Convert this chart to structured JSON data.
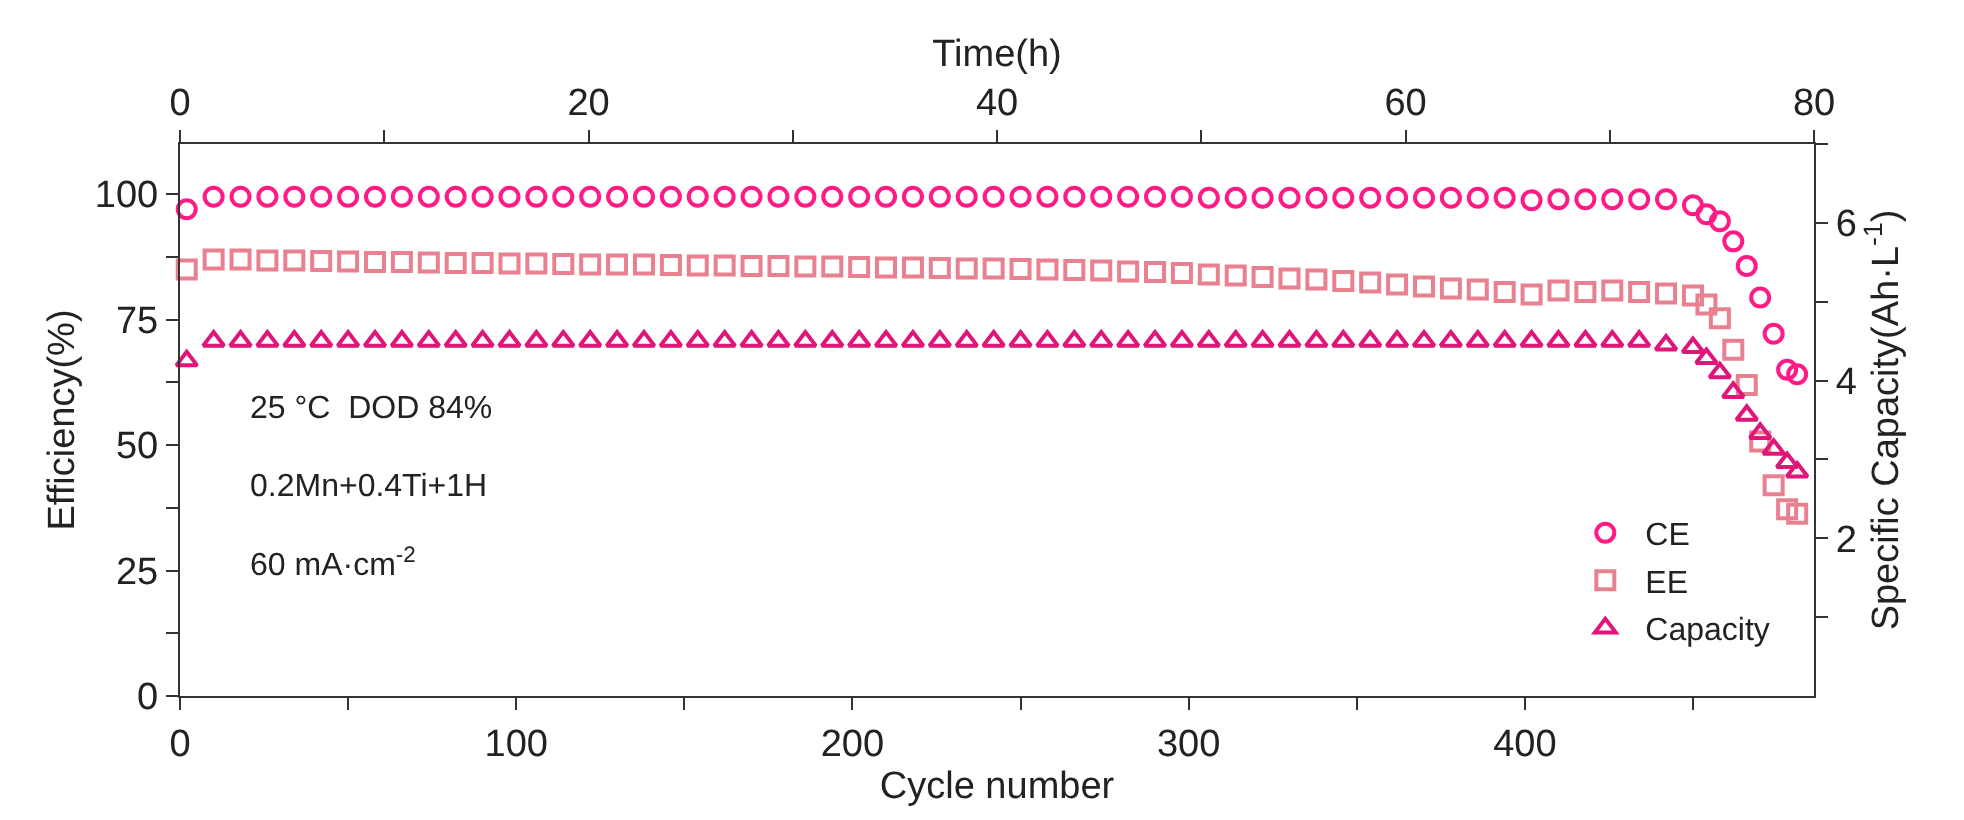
{
  "chart_data": {
    "type": "scatter",
    "xlabel": "Cycle number",
    "ylabel": "Efficiency(%)",
    "y2label": "Specific Capacity(Ah·L$^{-1}$)",
    "x2label": "Time(h)",
    "x": [
      2,
      10,
      18,
      26,
      34,
      42,
      50,
      58,
      66,
      74,
      82,
      90,
      98,
      106,
      114,
      122,
      130,
      138,
      146,
      154,
      162,
      170,
      178,
      186,
      194,
      202,
      210,
      218,
      226,
      234,
      242,
      250,
      258,
      266,
      274,
      282,
      290,
      298,
      306,
      314,
      322,
      330,
      338,
      346,
      354,
      362,
      370,
      378,
      386,
      394,
      402,
      410,
      418,
      426,
      434,
      442,
      450,
      454,
      458,
      462,
      466,
      470,
      474,
      478,
      481
    ],
    "series": [
      {
        "name": "CE",
        "color": "#ff1a85",
        "marker": "circle",
        "values": [
          97,
          99.5,
          99.5,
          99.5,
          99.5,
          99.5,
          99.5,
          99.5,
          99.5,
          99.5,
          99.5,
          99.5,
          99.5,
          99.5,
          99.5,
          99.5,
          99.5,
          99.5,
          99.5,
          99.5,
          99.5,
          99.5,
          99.5,
          99.5,
          99.5,
          99.5,
          99.5,
          99.5,
          99.5,
          99.5,
          99.5,
          99.5,
          99.5,
          99.5,
          99.5,
          99.5,
          99.5,
          99.5,
          99.3,
          99.3,
          99.3,
          99.3,
          99.3,
          99.3,
          99.3,
          99.3,
          99.3,
          99.3,
          99.3,
          99.3,
          98.8,
          99,
          99,
          99,
          99,
          99,
          97.8,
          96,
          94.6,
          90.6,
          85.7,
          79.4,
          72.2,
          65,
          64.1
        ]
      },
      {
        "name": "EE",
        "color": "#e8808f",
        "marker": "square",
        "values": [
          85,
          87,
          87,
          86.8,
          86.8,
          86.7,
          86.6,
          86.5,
          86.5,
          86.4,
          86.3,
          86.3,
          86.2,
          86.2,
          86.1,
          86,
          86,
          86,
          85.9,
          85.8,
          85.8,
          85.7,
          85.7,
          85.6,
          85.6,
          85.5,
          85.4,
          85.4,
          85.3,
          85.2,
          85.2,
          85.1,
          85,
          84.9,
          84.8,
          84.6,
          84.5,
          84.3,
          84,
          83.8,
          83.5,
          83.2,
          83,
          82.7,
          82.4,
          82,
          81.6,
          81.2,
          81,
          80.5,
          80,
          80.8,
          80.5,
          80.8,
          80.5,
          80.2,
          79.8,
          78,
          75.3,
          69,
          62,
          50.7,
          42,
          37.2,
          36.3
        ]
      },
      {
        "name": "Capacity",
        "color": "#e0157a",
        "marker": "triangle",
        "axis": "y2",
        "values": [
          4.25,
          4.5,
          4.5,
          4.5,
          4.5,
          4.5,
          4.5,
          4.5,
          4.5,
          4.5,
          4.5,
          4.5,
          4.5,
          4.5,
          4.5,
          4.5,
          4.5,
          4.5,
          4.5,
          4.5,
          4.5,
          4.5,
          4.5,
          4.5,
          4.5,
          4.5,
          4.5,
          4.5,
          4.5,
          4.5,
          4.5,
          4.5,
          4.5,
          4.5,
          4.5,
          4.5,
          4.5,
          4.5,
          4.5,
          4.5,
          4.5,
          4.5,
          4.5,
          4.5,
          4.5,
          4.5,
          4.5,
          4.5,
          4.5,
          4.5,
          4.5,
          4.5,
          4.5,
          4.5,
          4.5,
          4.45,
          4.42,
          4.28,
          4.1,
          3.85,
          3.56,
          3.33,
          3.13,
          2.96,
          2.84
        ]
      }
    ],
    "xlim": [
      0,
      486
    ],
    "xticks": [
      0,
      {
        "value": 50,
        "label": null
      },
      100,
      {
        "value": 150,
        "label": null
      },
      200,
      {
        "value": 250,
        "label": null
      },
      300,
      {
        "value": 350,
        "label": null
      },
      400,
      {
        "value": 450,
        "label": null
      }
    ],
    "x2lim": [
      0,
      80
    ],
    "x2ticks": [
      0,
      {
        "value": 10,
        "label": null
      },
      20,
      {
        "value": 30,
        "label": null
      },
      40,
      {
        "value": 50,
        "label": null
      },
      60,
      {
        "value": 70,
        "label": null
      },
      80
    ],
    "ylim": [
      0,
      110
    ],
    "yticks": [
      0,
      {
        "value": 12.5,
        "label": null
      },
      25,
      {
        "value": 37.5,
        "label": null
      },
      50,
      {
        "value": 62.5,
        "label": null
      },
      75,
      {
        "value": 87.5,
        "label": null
      },
      100
    ],
    "y2lim": [
      0,
      7
    ],
    "y2ticks": [
      {
        "value": 1,
        "label": null
      },
      2,
      {
        "value": 3,
        "label": null
      },
      4,
      {
        "value": 5,
        "label": null
      },
      6,
      {
        "value": 7,
        "label": null
      }
    ],
    "annotations": [
      "25 °C  DOD 84%",
      "0.2Mn+0.4Ti+1H",
      "60 mA·cm$^{-2}$"
    ],
    "legend": "bottom right"
  }
}
